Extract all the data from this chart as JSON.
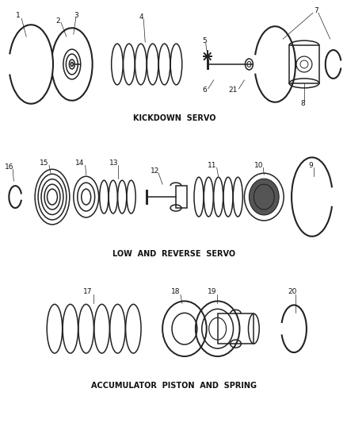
{
  "background_color": "#ffffff",
  "line_color": "#222222",
  "text_color": "#111111",
  "section_labels": {
    "kickdown": "KICKDOWN  SERVO",
    "low_reverse": "LOW  AND  REVERSE  SERVO",
    "accumulator": "ACCUMULATOR  PISTON  AND  SPRING"
  },
  "label_fontsize": 7.0,
  "number_fontsize": 6.5,
  "figsize": [
    4.38,
    5.33
  ],
  "dpi": 100
}
